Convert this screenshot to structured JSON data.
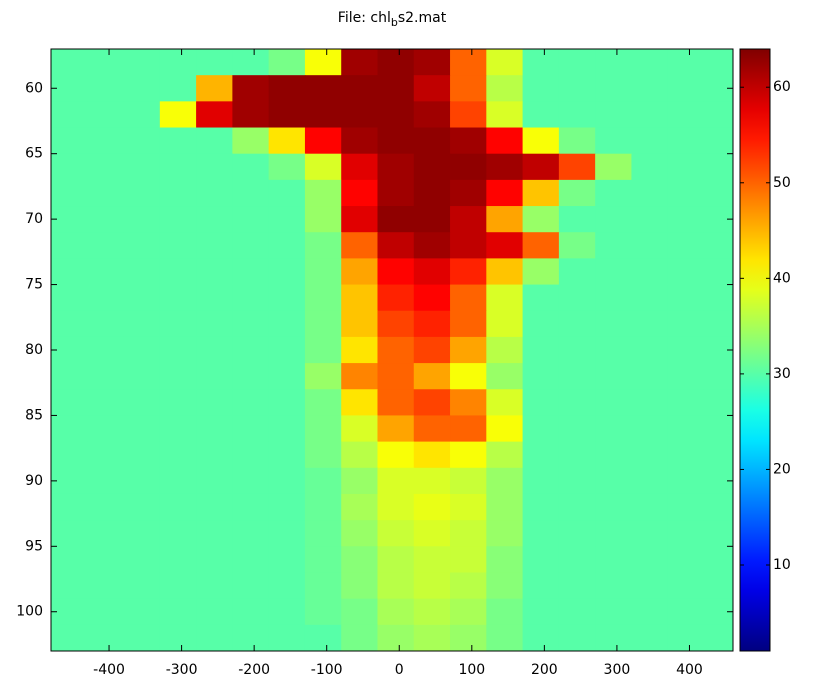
{
  "chart_data": {
    "type": "heatmap",
    "title": [
      "File: chl",
      "b",
      "s2.mat"
    ],
    "x": [
      -455,
      -405,
      -355,
      -305,
      -255,
      -205,
      -155,
      -105,
      -55,
      -5,
      45,
      95,
      145,
      195,
      245,
      295,
      345,
      395,
      445
    ],
    "y": [
      58,
      60,
      62,
      64,
      66,
      68,
      70,
      72,
      74,
      76,
      78,
      80,
      82,
      84,
      86,
      88,
      90,
      92,
      94,
      96,
      98,
      100,
      102
    ],
    "z": [
      [
        30,
        30,
        30,
        30,
        30,
        30,
        32,
        40,
        62,
        63,
        62,
        50,
        38,
        30,
        30,
        30,
        30,
        30,
        30
      ],
      [
        30,
        30,
        30,
        30,
        45,
        62,
        63,
        63,
        63,
        63,
        60,
        50,
        36,
        30,
        30,
        30,
        30,
        30,
        30
      ],
      [
        30,
        30,
        30,
        40,
        58,
        62,
        63,
        63,
        63,
        63,
        62,
        52,
        38,
        30,
        30,
        30,
        30,
        30,
        30
      ],
      [
        30,
        30,
        30,
        30,
        30,
        34,
        42,
        56,
        62,
        63,
        63,
        62,
        56,
        40,
        32,
        30,
        30,
        30,
        30
      ],
      [
        30,
        30,
        30,
        30,
        30,
        30,
        32,
        38,
        58,
        62,
        63,
        63,
        62,
        60,
        52,
        34,
        30,
        30,
        30
      ],
      [
        30,
        30,
        30,
        30,
        30,
        30,
        30,
        34,
        56,
        62,
        63,
        62,
        56,
        44,
        32,
        30,
        30,
        30,
        30
      ],
      [
        30,
        30,
        30,
        30,
        30,
        30,
        30,
        34,
        58,
        63,
        63,
        60,
        46,
        34,
        30,
        30,
        30,
        30,
        30
      ],
      [
        30,
        30,
        30,
        30,
        30,
        30,
        30,
        32,
        50,
        60,
        62,
        60,
        58,
        50,
        32,
        30,
        30,
        30,
        30
      ],
      [
        30,
        30,
        30,
        30,
        30,
        30,
        30,
        32,
        46,
        56,
        58,
        54,
        44,
        34,
        30,
        30,
        30,
        30,
        30
      ],
      [
        30,
        30,
        30,
        30,
        30,
        30,
        30,
        32,
        44,
        54,
        56,
        50,
        38,
        30,
        30,
        30,
        30,
        30,
        30
      ],
      [
        30,
        30,
        30,
        30,
        30,
        30,
        30,
        32,
        44,
        52,
        54,
        50,
        38,
        30,
        30,
        30,
        30,
        30,
        30
      ],
      [
        30,
        30,
        30,
        30,
        30,
        30,
        30,
        32,
        42,
        50,
        52,
        46,
        36,
        30,
        30,
        30,
        30,
        30,
        30
      ],
      [
        30,
        30,
        30,
        30,
        30,
        30,
        30,
        34,
        48,
        50,
        46,
        40,
        34,
        30,
        30,
        30,
        30,
        30,
        30
      ],
      [
        30,
        30,
        30,
        30,
        30,
        30,
        30,
        32,
        42,
        50,
        52,
        48,
        38,
        30,
        30,
        30,
        30,
        30,
        30
      ],
      [
        30,
        30,
        30,
        30,
        30,
        30,
        30,
        32,
        38,
        46,
        50,
        50,
        40,
        30,
        30,
        30,
        30,
        30,
        30
      ],
      [
        30,
        30,
        30,
        30,
        30,
        30,
        30,
        32,
        36,
        40,
        42,
        40,
        36,
        30,
        30,
        30,
        30,
        30,
        30
      ],
      [
        30,
        30,
        30,
        30,
        30,
        30,
        30,
        31,
        34,
        38,
        38,
        37,
        34,
        30,
        30,
        30,
        30,
        30,
        30
      ],
      [
        30,
        30,
        30,
        30,
        30,
        30,
        30,
        31,
        35,
        38,
        39,
        38,
        34,
        30,
        30,
        30,
        30,
        30,
        30
      ],
      [
        30,
        30,
        30,
        30,
        30,
        30,
        30,
        31,
        34,
        37,
        38,
        37,
        34,
        30,
        30,
        30,
        30,
        30,
        30
      ],
      [
        30,
        30,
        30,
        30,
        30,
        30,
        30,
        31,
        33,
        36,
        37,
        37,
        33,
        30,
        30,
        30,
        30,
        30,
        30
      ],
      [
        30,
        30,
        30,
        30,
        30,
        30,
        30,
        31,
        33,
        36,
        37,
        36,
        33,
        30,
        30,
        30,
        30,
        30,
        30
      ],
      [
        30,
        30,
        30,
        30,
        30,
        30,
        30,
        31,
        32,
        35,
        36,
        35,
        32,
        30,
        30,
        30,
        30,
        30,
        30
      ],
      [
        30,
        30,
        30,
        30,
        30,
        30,
        30,
        30,
        32,
        34,
        35,
        34,
        32,
        30,
        30,
        30,
        30,
        30,
        30
      ]
    ],
    "xlim": [
      -480,
      460
    ],
    "xticks": [
      -400,
      -300,
      -200,
      -100,
      0,
      100,
      200,
      300,
      400
    ],
    "ylim": [
      57,
      103
    ],
    "y_direction": "reverse",
    "yticks": [
      60,
      65,
      70,
      75,
      80,
      85,
      90,
      95,
      100
    ],
    "colormap": "jet",
    "colorbar": {
      "clim": [
        1,
        64
      ],
      "ticks": [
        10,
        20,
        30,
        40,
        50,
        60
      ]
    }
  }
}
